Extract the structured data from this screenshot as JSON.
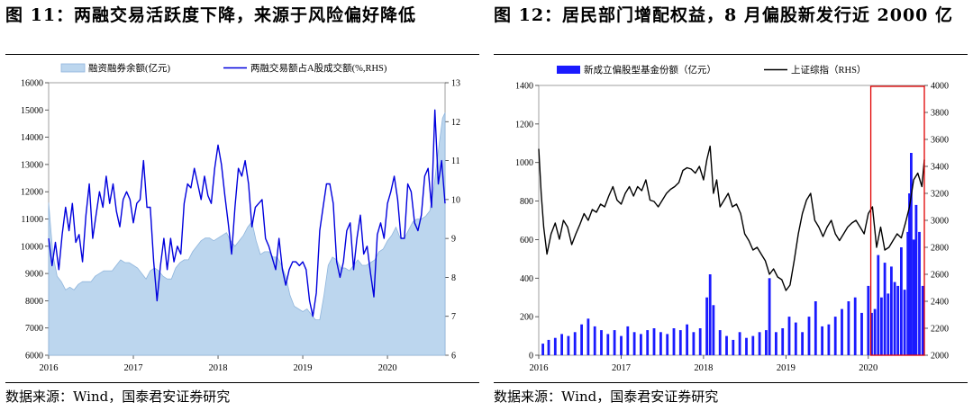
{
  "left": {
    "title": "图 11：两融交易活跃度下降，来源于风险偏好降低",
    "source": "数据来源：Wind，国泰君安证券研究"
  },
  "right": {
    "title": "图 12：居民部门增配权益，8 月偏股新发行近 2000 亿",
    "source": "数据来源：Wind，国泰君安证券研究"
  },
  "colors": {
    "area_fill": "#bcd6ee",
    "area_stroke": "#8fb5dc",
    "blue_line": "#0000dd",
    "black_line": "#000000",
    "bar_fill": "#1a1aff",
    "highlight_box": "#e00000"
  },
  "chart_data": [
    {
      "type": "area",
      "legend_position": "top",
      "x_tick_labels": [
        "2016",
        "2017",
        "2018",
        "2019",
        "2020"
      ],
      "x_range": [
        2016.0,
        2020.68
      ],
      "y_ticks": [
        6000,
        7000,
        8000,
        9000,
        10000,
        11000,
        12000,
        13000,
        14000,
        15000,
        16000
      ],
      "y_range": [
        6000,
        16000
      ],
      "y2_ticks": [
        6,
        7,
        8,
        9,
        10,
        11,
        12,
        13
      ],
      "y2_range": [
        6,
        13
      ],
      "series": [
        {
          "name": "融资融券余额(亿元)",
          "type": "area",
          "axis": "left",
          "x": [
            2016.0,
            2016.05,
            2016.1,
            2016.15,
            2016.2,
            2016.25,
            2016.3,
            2016.35,
            2016.4,
            2016.45,
            2016.5,
            2016.55,
            2016.6,
            2016.65,
            2016.7,
            2016.75,
            2016.8,
            2016.85,
            2016.9,
            2016.95,
            2017.0,
            2017.05,
            2017.1,
            2017.15,
            2017.2,
            2017.25,
            2017.3,
            2017.35,
            2017.4,
            2017.45,
            2017.5,
            2017.55,
            2017.6,
            2017.65,
            2017.7,
            2017.75,
            2017.8,
            2017.85,
            2017.9,
            2017.95,
            2018.0,
            2018.05,
            2018.1,
            2018.15,
            2018.2,
            2018.25,
            2018.3,
            2018.35,
            2018.4,
            2018.45,
            2018.5,
            2018.55,
            2018.6,
            2018.65,
            2018.7,
            2018.75,
            2018.8,
            2018.85,
            2018.9,
            2018.95,
            2019.0,
            2019.05,
            2019.1,
            2019.15,
            2019.2,
            2019.25,
            2019.3,
            2019.35,
            2019.4,
            2019.45,
            2019.5,
            2019.55,
            2019.6,
            2019.65,
            2019.7,
            2019.75,
            2019.8,
            2019.85,
            2019.9,
            2019.95,
            2020.0,
            2020.05,
            2020.1,
            2020.15,
            2020.2,
            2020.25,
            2020.3,
            2020.35,
            2020.4,
            2020.45,
            2020.5,
            2020.55,
            2020.6,
            2020.65,
            2020.68
          ],
          "values": [
            11600,
            9700,
            8900,
            8700,
            8400,
            8500,
            8400,
            8600,
            8700,
            8700,
            8700,
            8900,
            9000,
            9100,
            9100,
            9100,
            9300,
            9500,
            9400,
            9400,
            9300,
            9200,
            9000,
            8800,
            9100,
            9200,
            9100,
            8900,
            8800,
            8800,
            9200,
            9400,
            9500,
            9500,
            9800,
            10000,
            10200,
            10300,
            10300,
            10200,
            10300,
            10400,
            10500,
            10200,
            10000,
            10200,
            10400,
            10700,
            10900,
            10200,
            9700,
            9800,
            9800,
            9600,
            9600,
            9300,
            8900,
            8200,
            7800,
            7700,
            7600,
            7700,
            7500,
            7300,
            7300,
            8200,
            9300,
            9600,
            9500,
            9200,
            9200,
            9100,
            9300,
            9500,
            9300,
            9300,
            9400,
            9500,
            9800,
            9900,
            10200,
            10400,
            10700,
            10300,
            10300,
            10600,
            10900,
            11000,
            11000,
            11100,
            11300,
            12200,
            13500,
            14700,
            14900
          ]
        },
        {
          "name": "两融交易额占A股成交额(%,RHS)",
          "type": "line",
          "axis": "right",
          "x": [
            2016.0,
            2016.04,
            2016.08,
            2016.12,
            2016.16,
            2016.2,
            2016.24,
            2016.28,
            2016.32,
            2016.36,
            2016.4,
            2016.44,
            2016.48,
            2016.52,
            2016.56,
            2016.6,
            2016.64,
            2016.68,
            2016.72,
            2016.76,
            2016.8,
            2016.84,
            2016.88,
            2016.92,
            2016.96,
            2017.0,
            2017.04,
            2017.08,
            2017.12,
            2017.16,
            2017.2,
            2017.24,
            2017.28,
            2017.32,
            2017.36,
            2017.4,
            2017.44,
            2017.48,
            2017.52,
            2017.56,
            2017.6,
            2017.64,
            2017.68,
            2017.72,
            2017.76,
            2017.8,
            2017.84,
            2017.88,
            2017.92,
            2017.96,
            2018.0,
            2018.04,
            2018.08,
            2018.12,
            2018.16,
            2018.2,
            2018.24,
            2018.28,
            2018.32,
            2018.36,
            2018.4,
            2018.44,
            2018.48,
            2018.52,
            2018.56,
            2018.6,
            2018.64,
            2018.68,
            2018.72,
            2018.76,
            2018.8,
            2018.84,
            2018.88,
            2018.92,
            2018.96,
            2019.0,
            2019.04,
            2019.08,
            2019.12,
            2019.16,
            2019.2,
            2019.24,
            2019.28,
            2019.32,
            2019.36,
            2019.4,
            2019.44,
            2019.48,
            2019.52,
            2019.56,
            2019.6,
            2019.64,
            2019.68,
            2019.72,
            2019.76,
            2019.8,
            2019.84,
            2019.88,
            2019.92,
            2019.96,
            2020.0,
            2020.04,
            2020.08,
            2020.12,
            2020.16,
            2020.2,
            2020.24,
            2020.28,
            2020.32,
            2020.36,
            2020.4,
            2020.44,
            2020.48,
            2020.52,
            2020.56,
            2020.6,
            2020.64,
            2020.68
          ],
          "values": [
            9.0,
            8.3,
            8.9,
            8.2,
            9.1,
            9.8,
            9.2,
            9.9,
            8.9,
            9.1,
            8.4,
            9.6,
            10.4,
            9.0,
            9.6,
            10.2,
            9.8,
            10.6,
            9.9,
            10.4,
            9.7,
            9.3,
            10.0,
            10.2,
            10.0,
            9.4,
            9.9,
            10.0,
            11.0,
            9.8,
            9.8,
            8.4,
            7.4,
            8.3,
            9.0,
            8.2,
            9.0,
            8.4,
            8.8,
            8.6,
            9.9,
            10.4,
            10.3,
            10.8,
            10.4,
            10.0,
            10.6,
            10.1,
            9.9,
            10.8,
            11.4,
            10.9,
            10.1,
            9.4,
            8.6,
            9.8,
            10.8,
            10.6,
            11.0,
            10.4,
            9.3,
            9.8,
            9.9,
            10.0,
            9.0,
            8.8,
            8.5,
            8.2,
            9.0,
            8.2,
            7.8,
            8.2,
            8.4,
            8.4,
            8.3,
            8.4,
            8.2,
            7.4,
            7.0,
            7.6,
            9.2,
            9.8,
            10.4,
            10.4,
            9.9,
            8.4,
            8.0,
            8.4,
            9.2,
            9.4,
            8.2,
            9.0,
            9.6,
            8.6,
            8.8,
            8.1,
            7.5,
            9.1,
            9.4,
            9.0,
            9.9,
            10.2,
            10.6,
            10.0,
            9.0,
            9.0,
            10.4,
            10.2,
            9.4,
            9.2,
            9.6,
            10.6,
            10.8,
            9.8,
            12.3,
            10.4,
            11.0,
            9.9
          ]
        }
      ]
    },
    {
      "type": "bar",
      "legend_position": "top",
      "x_tick_labels": [
        "2016",
        "2017",
        "2018",
        "2019",
        "2020"
      ],
      "x_range": [
        2016.0,
        2020.68
      ],
      "y_ticks": [
        0,
        200,
        400,
        600,
        800,
        1000,
        1200,
        1400
      ],
      "y_range": [
        0,
        1400
      ],
      "y2_ticks": [
        2000,
        2200,
        2400,
        2600,
        2800,
        3000,
        3200,
        3400,
        3600,
        3800,
        4000
      ],
      "y2_range": [
        2000,
        4000
      ],
      "highlight_x_range": [
        2020.03,
        2020.68
      ],
      "series": [
        {
          "name": "新成立偏股型基金份额（亿元）",
          "type": "bar",
          "axis": "left",
          "x": [
            2016.05,
            2016.12,
            2016.2,
            2016.28,
            2016.36,
            2016.44,
            2016.52,
            2016.6,
            2016.68,
            2016.76,
            2016.84,
            2016.92,
            2017.0,
            2017.08,
            2017.16,
            2017.24,
            2017.32,
            2017.4,
            2017.48,
            2017.56,
            2017.64,
            2017.72,
            2017.8,
            2017.88,
            2017.96,
            2018.04,
            2018.08,
            2018.12,
            2018.2,
            2018.28,
            2018.36,
            2018.44,
            2018.52,
            2018.6,
            2018.68,
            2018.76,
            2018.8,
            2018.88,
            2018.96,
            2019.04,
            2019.12,
            2019.2,
            2019.28,
            2019.36,
            2019.44,
            2019.52,
            2019.6,
            2019.68,
            2019.76,
            2019.84,
            2019.92,
            2020.0,
            2020.04,
            2020.08,
            2020.12,
            2020.16,
            2020.2,
            2020.24,
            2020.28,
            2020.32,
            2020.36,
            2020.4,
            2020.44,
            2020.48,
            2020.5,
            2020.52,
            2020.55,
            2020.58,
            2020.62,
            2020.66
          ],
          "values": [
            60,
            80,
            90,
            110,
            100,
            120,
            160,
            190,
            150,
            130,
            110,
            130,
            100,
            150,
            120,
            110,
            130,
            140,
            120,
            110,
            140,
            130,
            160,
            120,
            140,
            300,
            420,
            260,
            130,
            100,
            80,
            120,
            90,
            100,
            120,
            130,
            400,
            120,
            140,
            200,
            170,
            120,
            200,
            280,
            150,
            160,
            200,
            240,
            280,
            300,
            220,
            360,
            220,
            240,
            520,
            300,
            480,
            320,
            460,
            380,
            360,
            560,
            340,
            640,
            840,
            1050,
            600,
            780,
            640,
            360
          ]
        },
        {
          "name": "上证综指（RHS）",
          "type": "line",
          "axis": "right",
          "x": [
            2016.0,
            2016.03,
            2016.06,
            2016.1,
            2016.15,
            2016.2,
            2016.25,
            2016.3,
            2016.35,
            2016.4,
            2016.45,
            2016.5,
            2016.55,
            2016.6,
            2016.65,
            2016.7,
            2016.75,
            2016.8,
            2016.85,
            2016.9,
            2016.95,
            2017.0,
            2017.05,
            2017.1,
            2017.15,
            2017.2,
            2017.25,
            2017.3,
            2017.35,
            2017.4,
            2017.45,
            2017.5,
            2017.55,
            2017.6,
            2017.65,
            2017.7,
            2017.75,
            2017.8,
            2017.85,
            2017.9,
            2017.95,
            2018.0,
            2018.04,
            2018.08,
            2018.12,
            2018.16,
            2018.2,
            2018.25,
            2018.3,
            2018.35,
            2018.4,
            2018.45,
            2018.5,
            2018.55,
            2018.6,
            2018.65,
            2018.7,
            2018.75,
            2018.8,
            2018.85,
            2018.9,
            2018.95,
            2019.0,
            2019.05,
            2019.1,
            2019.15,
            2019.2,
            2019.25,
            2019.3,
            2019.35,
            2019.4,
            2019.45,
            2019.5,
            2019.55,
            2019.6,
            2019.65,
            2019.7,
            2019.75,
            2019.8,
            2019.85,
            2019.9,
            2019.95,
            2020.0,
            2020.05,
            2020.1,
            2020.15,
            2020.2,
            2020.25,
            2020.3,
            2020.35,
            2020.4,
            2020.45,
            2020.5,
            2020.55,
            2020.6,
            2020.65,
            2020.68
          ],
          "values": [
            3530,
            3200,
            2950,
            2750,
            2900,
            2980,
            2860,
            3000,
            2950,
            2820,
            2900,
            2970,
            3050,
            3000,
            3080,
            3060,
            3120,
            3100,
            3180,
            3250,
            3150,
            3120,
            3200,
            3250,
            3180,
            3250,
            3220,
            3300,
            3150,
            3140,
            3100,
            3150,
            3200,
            3230,
            3250,
            3280,
            3370,
            3390,
            3380,
            3350,
            3400,
            3300,
            3450,
            3550,
            3200,
            3300,
            3100,
            3150,
            3200,
            3100,
            3120,
            3050,
            2900,
            2850,
            2780,
            2800,
            2750,
            2700,
            2600,
            2640,
            2580,
            2560,
            2480,
            2520,
            2700,
            2900,
            3050,
            3150,
            3200,
            3000,
            2950,
            2880,
            2950,
            3000,
            2900,
            2850,
            2900,
            2950,
            2980,
            3000,
            2950,
            2900,
            3050,
            3100,
            2800,
            2950,
            2780,
            2800,
            2850,
            2900,
            2870,
            2980,
            3100,
            3300,
            3350,
            3250,
            3450
          ]
        }
      ]
    }
  ]
}
